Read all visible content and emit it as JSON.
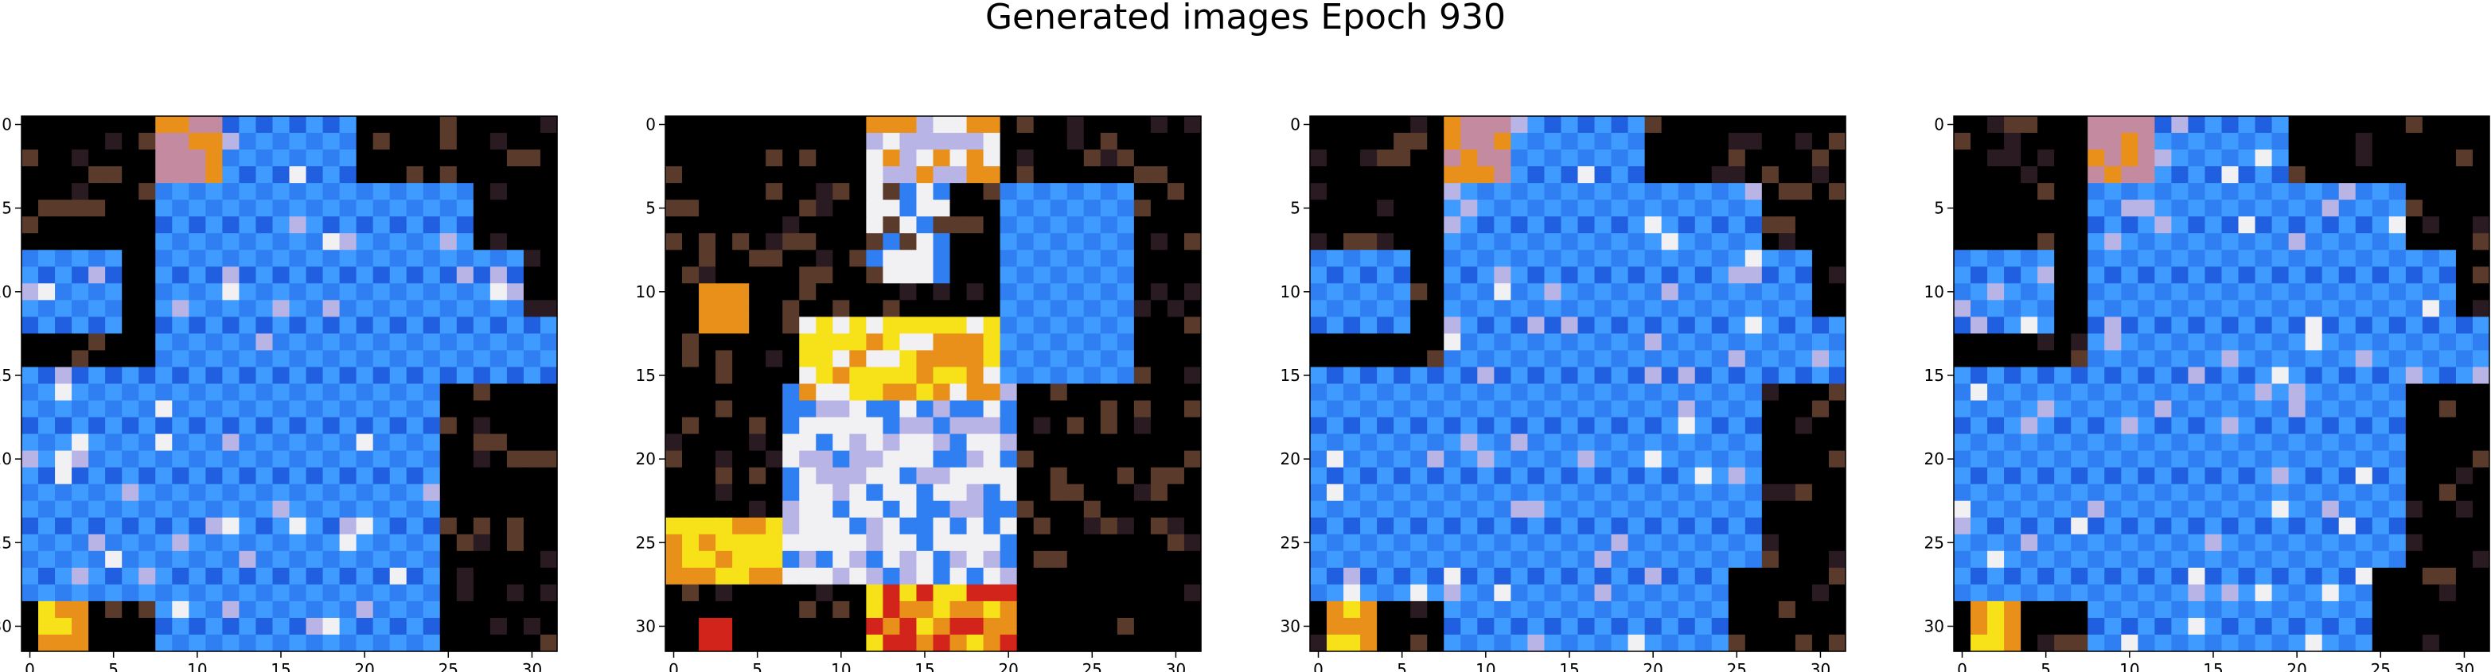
{
  "figure": {
    "title": "Generated images Epoch 930"
  },
  "chart_data": {
    "type": "heatmap",
    "title": "Generated images Epoch 930",
    "grid_size": 32,
    "axis_ticks": [
      0,
      5,
      10,
      15,
      20,
      25,
      30
    ],
    "grid": false,
    "palette": {
      "background": "#000000",
      "blue_light": "#3f9bff",
      "blue_mid": "#2f7ff2",
      "blue_dark": "#1f5fe0",
      "yellow": "#f7e21a",
      "orange": "#e8901a",
      "red": "#d2241a",
      "white": "#f1f1f4",
      "lavender": "#b9b4e6",
      "pink": "#c48aa0",
      "brown": "#5a3a2a"
    },
    "panels": [
      {
        "name": ""
      },
      {
        "name": ""
      },
      {
        "name": ""
      },
      {
        "name": ""
      }
    ]
  }
}
